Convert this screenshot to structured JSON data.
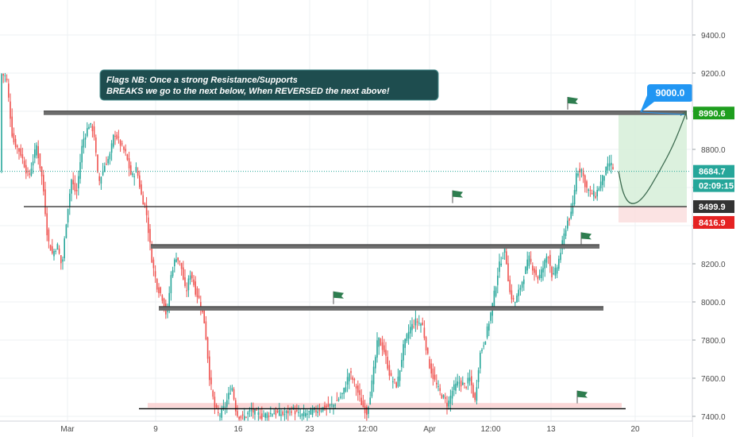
{
  "chart_data": {
    "type": "candlestick",
    "title": "",
    "xlabel": "",
    "ylabel": "",
    "ylim": [
      7390,
      9500
    ],
    "y_ticks": [
      7400,
      7600,
      7800,
      8000,
      8200,
      8400,
      8600,
      8800,
      9000,
      9200,
      9400
    ],
    "y_tick_labels": [
      "7400.0",
      "7600.0",
      "7800.0",
      "8000.0",
      "8200.0",
      "8400.0",
      "8600.0",
      "8800.0",
      "9000.0",
      "9200.0",
      "9400.0"
    ],
    "x_tick_labels": [
      "Mar",
      "9",
      "16",
      "23",
      "12:00",
      "Apr",
      "12:00",
      "13",
      "20"
    ],
    "grid": true,
    "candle_colors": {
      "up": "#26a69a",
      "down": "#ef5350"
    },
    "price_path": [
      [
        0,
        9200
      ],
      [
        8,
        9180
      ],
      [
        16,
        8850
      ],
      [
        26,
        8780
      ],
      [
        36,
        8650
      ],
      [
        46,
        8820
      ],
      [
        54,
        8620
      ],
      [
        60,
        8330
      ],
      [
        66,
        8250
      ],
      [
        72,
        8300
      ],
      [
        78,
        8180
      ],
      [
        84,
        8450
      ],
      [
        90,
        8640
      ],
      [
        96,
        8560
      ],
      [
        104,
        8840
      ],
      [
        112,
        8930
      ],
      [
        118,
        8900
      ],
      [
        124,
        8620
      ],
      [
        132,
        8720
      ],
      [
        138,
        8760
      ],
      [
        144,
        8890
      ],
      [
        150,
        8840
      ],
      [
        158,
        8780
      ],
      [
        166,
        8650
      ],
      [
        172,
        8700
      ],
      [
        178,
        8560
      ],
      [
        184,
        8480
      ],
      [
        188,
        8330
      ],
      [
        192,
        8200
      ],
      [
        198,
        8080
      ],
      [
        204,
        8030
      ],
      [
        210,
        7920
      ],
      [
        216,
        8160
      ],
      [
        222,
        8240
      ],
      [
        228,
        8190
      ],
      [
        234,
        8040
      ],
      [
        240,
        8160
      ],
      [
        246,
        8060
      ],
      [
        252,
        8000
      ],
      [
        258,
        7880
      ],
      [
        264,
        7600
      ],
      [
        270,
        7450
      ],
      [
        276,
        7400
      ],
      [
        284,
        7460
      ],
      [
        292,
        7560
      ],
      [
        298,
        7410
      ],
      [
        306,
        7390
      ],
      [
        316,
        7430
      ],
      [
        330,
        7400
      ],
      [
        344,
        7420
      ],
      [
        358,
        7410
      ],
      [
        368,
        7440
      ],
      [
        378,
        7400
      ],
      [
        390,
        7420
      ],
      [
        404,
        7440
      ],
      [
        420,
        7460
      ],
      [
        432,
        7520
      ],
      [
        440,
        7630
      ],
      [
        448,
        7560
      ],
      [
        456,
        7460
      ],
      [
        462,
        7420
      ],
      [
        468,
        7560
      ],
      [
        476,
        7810
      ],
      [
        484,
        7740
      ],
      [
        492,
        7600
      ],
      [
        500,
        7560
      ],
      [
        508,
        7760
      ],
      [
        516,
        7860
      ],
      [
        524,
        7900
      ],
      [
        532,
        7880
      ],
      [
        540,
        7680
      ],
      [
        546,
        7600
      ],
      [
        552,
        7540
      ],
      [
        558,
        7500
      ],
      [
        564,
        7460
      ],
      [
        570,
        7540
      ],
      [
        578,
        7580
      ],
      [
        586,
        7560
      ],
      [
        592,
        7600
      ],
      [
        598,
        7470
      ],
      [
        604,
        7720
      ],
      [
        612,
        7820
      ],
      [
        620,
        7980
      ],
      [
        628,
        8180
      ],
      [
        636,
        8280
      ],
      [
        642,
        8050
      ],
      [
        648,
        7990
      ],
      [
        654,
        8060
      ],
      [
        660,
        8140
      ],
      [
        666,
        8230
      ],
      [
        672,
        8170
      ],
      [
        678,
        8120
      ],
      [
        684,
        8180
      ],
      [
        690,
        8260
      ],
      [
        696,
        8120
      ],
      [
        702,
        8190
      ],
      [
        708,
        8300
      ],
      [
        714,
        8420
      ],
      [
        720,
        8460
      ],
      [
        726,
        8680
      ],
      [
        732,
        8700
      ],
      [
        738,
        8600
      ],
      [
        744,
        8570
      ],
      [
        750,
        8560
      ],
      [
        756,
        8620
      ],
      [
        762,
        8680
      ],
      [
        768,
        8730
      ],
      [
        774,
        8684.7
      ]
    ],
    "horizontal_levels": [
      {
        "price": 8990.6,
        "x_start": 55,
        "x_end": 865,
        "style": "band",
        "color": "#555555"
      },
      {
        "price": 8499.9,
        "x_start": 30,
        "x_end": 865,
        "style": "thin",
        "color": "#333333"
      },
      {
        "price": 8290,
        "x_start": 190,
        "x_end": 755,
        "style": "band",
        "color": "#555555"
      },
      {
        "price": 7965,
        "x_start": 200,
        "x_end": 760,
        "style": "band",
        "color": "#555555"
      },
      {
        "price": 7440,
        "x_start": 175,
        "x_end": 788,
        "style": "thin",
        "color": "#000000"
      }
    ],
    "flags": [
      {
        "x": 715,
        "price": 9050
      },
      {
        "x": 570,
        "price": 8560
      },
      {
        "x": 732,
        "price": 8340
      },
      {
        "x": 420,
        "price": 8030
      },
      {
        "x": 727,
        "price": 7510
      }
    ],
    "position_zone": {
      "x_start": 779,
      "x_end": 865,
      "entry": 8499.9,
      "target": 8990.6,
      "stop": 8416.9
    },
    "projection_path": [
      [
        779,
        8684.7
      ],
      [
        785,
        8560
      ],
      [
        795,
        8505
      ],
      [
        810,
        8540
      ],
      [
        830,
        8680
      ],
      [
        848,
        8820
      ],
      [
        864,
        8990
      ]
    ],
    "current_price_line": 8684.7,
    "price_labels": [
      {
        "price": 8990.6,
        "text": "8990.6",
        "color": "#1e9e1e"
      },
      {
        "price": 8684.7,
        "text": "8684.7",
        "color": "#26a69a"
      },
      {
        "price": 8610,
        "text": "02:09:15",
        "color": "#26a69a"
      },
      {
        "price": 8499.9,
        "text": "8499.9",
        "color": "#333333"
      },
      {
        "price": 8416.9,
        "text": "8416.9",
        "color": "#e52222"
      }
    ],
    "annotation": {
      "line1": "Flags NB: Once a strong Resistance/Supports",
      "line2": "BREAKS we go to the next below, When REVERSED the next above!"
    },
    "callout": {
      "text": "9000.0",
      "color": "#2196f3"
    }
  }
}
